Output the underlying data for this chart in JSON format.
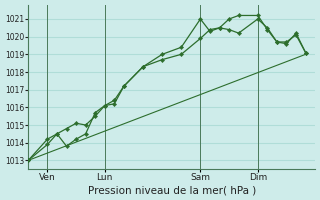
{
  "xlabel": "Pression niveau de la mer( hPa )",
  "bg_color": "#ceecea",
  "grid_color": "#b0ddd8",
  "line_color": "#2d6e2d",
  "marker_color": "#2d6e2d",
  "ylim": [
    1012.5,
    1021.8
  ],
  "yticks": [
    1013,
    1014,
    1015,
    1016,
    1017,
    1018,
    1019,
    1020,
    1021
  ],
  "xtick_labels": [
    "Ven",
    "Lun",
    "Sam",
    "Dim"
  ],
  "xtick_positions": [
    2,
    8,
    18,
    24
  ],
  "vline_positions": [
    2,
    8,
    18,
    24
  ],
  "xlim": [
    0,
    30
  ],
  "series1_x": [
    0,
    2,
    3,
    4,
    5,
    6,
    7,
    8,
    9,
    10,
    12,
    14,
    16,
    18,
    19,
    20,
    21,
    22,
    24,
    25,
    26,
    27,
    28,
    29
  ],
  "series1_y": [
    1013.0,
    1013.9,
    1014.5,
    1014.8,
    1015.1,
    1015.0,
    1015.5,
    1016.1,
    1016.2,
    1017.2,
    1018.3,
    1018.7,
    1019.0,
    1019.9,
    1020.4,
    1020.5,
    1020.4,
    1020.2,
    1021.0,
    1020.5,
    1019.7,
    1019.7,
    1020.1,
    1019.1
  ],
  "series2_x": [
    0,
    2,
    3,
    4,
    5,
    6,
    7,
    8,
    9,
    10,
    12,
    14,
    16,
    18,
    19,
    20,
    21,
    22,
    24,
    25,
    26,
    27,
    28,
    29
  ],
  "series2_y": [
    1013.0,
    1014.2,
    1014.5,
    1013.8,
    1014.2,
    1014.5,
    1015.7,
    1016.1,
    1016.4,
    1017.2,
    1018.3,
    1019.0,
    1019.4,
    1021.0,
    1020.3,
    1020.5,
    1021.0,
    1021.2,
    1021.2,
    1020.4,
    1019.7,
    1019.6,
    1020.2,
    1019.1
  ],
  "trend_x": [
    0,
    29
  ],
  "trend_y": [
    1013.0,
    1019.0
  ],
  "xlabel_fontsize": 7.5
}
